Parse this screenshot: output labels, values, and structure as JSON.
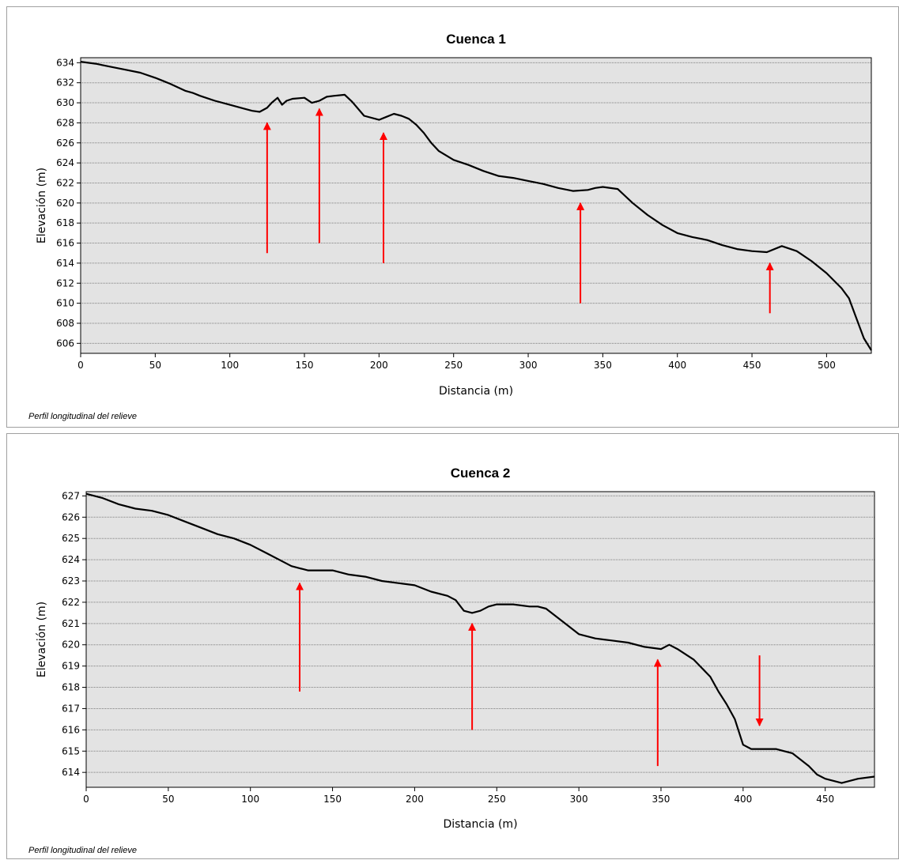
{
  "chart_data": [
    {
      "type": "line",
      "title": "Cuenca 1",
      "xlabel": "Distancia (m)",
      "ylabel": "Elevación (m)",
      "caption": "Perfil longitudinal del relieve",
      "xlim": [
        0,
        530
      ],
      "ylim": [
        605,
        634.5
      ],
      "xticks": [
        0,
        50,
        100,
        150,
        200,
        250,
        300,
        350,
        400,
        450,
        500
      ],
      "yticks": [
        606,
        608,
        610,
        612,
        614,
        616,
        618,
        620,
        622,
        624,
        626,
        628,
        630,
        632,
        634
      ],
      "grid": true,
      "line_color": "#000000",
      "arrow_color": "#ff0000",
      "series": [
        {
          "x": [
            0,
            10,
            20,
            30,
            40,
            50,
            55,
            60,
            70,
            75,
            80,
            90,
            100,
            110,
            115,
            120,
            125,
            128,
            132,
            135,
            138,
            142,
            150,
            155,
            160,
            165,
            170,
            177,
            182,
            190,
            200,
            205,
            210,
            215,
            220,
            225,
            230,
            235,
            240,
            250,
            260,
            270,
            280,
            290,
            300,
            310,
            320,
            330,
            340,
            345,
            350,
            360,
            365,
            370,
            380,
            390,
            400,
            410,
            420,
            430,
            440,
            450,
            460,
            470,
            480,
            490,
            500,
            510,
            515,
            520,
            525,
            530
          ],
          "y": [
            634.1,
            633.9,
            633.6,
            633.3,
            633.0,
            632.5,
            632.2,
            631.9,
            631.2,
            631.0,
            630.7,
            630.2,
            629.8,
            629.4,
            629.2,
            629.1,
            629.5,
            630.0,
            630.5,
            629.8,
            630.2,
            630.4,
            630.5,
            630.0,
            630.2,
            630.6,
            630.7,
            630.8,
            630.1,
            628.7,
            628.3,
            628.6,
            628.9,
            628.7,
            628.4,
            627.8,
            627.0,
            626.0,
            625.2,
            624.3,
            623.8,
            623.2,
            622.7,
            622.5,
            622.2,
            621.9,
            621.5,
            621.2,
            621.3,
            621.5,
            621.6,
            621.4,
            620.7,
            620.0,
            618.8,
            617.8,
            617.0,
            616.6,
            616.3,
            615.8,
            615.4,
            615.2,
            615.1,
            615.7,
            615.2,
            614.2,
            613.0,
            611.5,
            610.5,
            608.5,
            606.5,
            605.3
          ]
        }
      ],
      "arrows": [
        {
          "x": 125,
          "y_from": 615,
          "y_to": 628
        },
        {
          "x": 160,
          "y_from": 616,
          "y_to": 629.4
        },
        {
          "x": 203,
          "y_from": 614,
          "y_to": 627
        },
        {
          "x": 335,
          "y_from": 610,
          "y_to": 620
        },
        {
          "x": 462,
          "y_from": 609,
          "y_to": 614
        }
      ]
    },
    {
      "type": "line",
      "title": "Cuenca 2",
      "xlabel": "Distancia (m)",
      "ylabel": "Elevación (m)",
      "caption": "Perfil longitudinal del relieve",
      "xlim": [
        0,
        480
      ],
      "ylim": [
        613.3,
        627.2
      ],
      "xticks": [
        0,
        50,
        100,
        150,
        200,
        250,
        300,
        350,
        400,
        450
      ],
      "yticks": [
        614,
        615,
        616,
        617,
        618,
        619,
        620,
        621,
        622,
        623,
        624,
        625,
        626,
        627
      ],
      "grid": true,
      "line_color": "#000000",
      "arrow_color": "#ff0000",
      "series": [
        {
          "x": [
            0,
            10,
            20,
            30,
            40,
            50,
            60,
            70,
            80,
            90,
            100,
            110,
            120,
            125,
            130,
            135,
            140,
            150,
            160,
            170,
            180,
            190,
            200,
            210,
            220,
            225,
            230,
            235,
            240,
            245,
            250,
            260,
            270,
            275,
            280,
            290,
            300,
            310,
            320,
            330,
            340,
            350,
            355,
            360,
            370,
            380,
            385,
            390,
            395,
            400,
            405,
            410,
            420,
            425,
            430,
            440,
            445,
            450,
            460,
            470,
            480
          ],
          "y": [
            627.1,
            626.9,
            626.6,
            626.4,
            626.3,
            626.1,
            625.8,
            625.5,
            625.2,
            625.0,
            624.7,
            624.3,
            623.9,
            623.7,
            623.6,
            623.5,
            623.5,
            623.5,
            623.3,
            623.2,
            623.0,
            622.9,
            622.8,
            622.5,
            622.3,
            622.1,
            621.6,
            621.5,
            621.6,
            621.8,
            621.9,
            621.9,
            621.8,
            621.8,
            621.7,
            621.1,
            620.5,
            620.3,
            620.2,
            620.1,
            619.9,
            619.8,
            620.0,
            619.8,
            619.3,
            618.5,
            617.8,
            617.2,
            616.5,
            615.3,
            615.1,
            615.1,
            615.1,
            615.0,
            614.9,
            614.3,
            613.9,
            613.7,
            613.5,
            613.7,
            613.8
          ]
        }
      ],
      "arrows": [
        {
          "x": 130,
          "y_from": 617.8,
          "y_to": 622.9
        },
        {
          "x": 235,
          "y_from": 616.0,
          "y_to": 621.0
        },
        {
          "x": 348,
          "y_from": 614.3,
          "y_to": 619.3
        },
        {
          "x": 410,
          "y_from": 619.5,
          "y_to": 616.2
        }
      ]
    }
  ]
}
